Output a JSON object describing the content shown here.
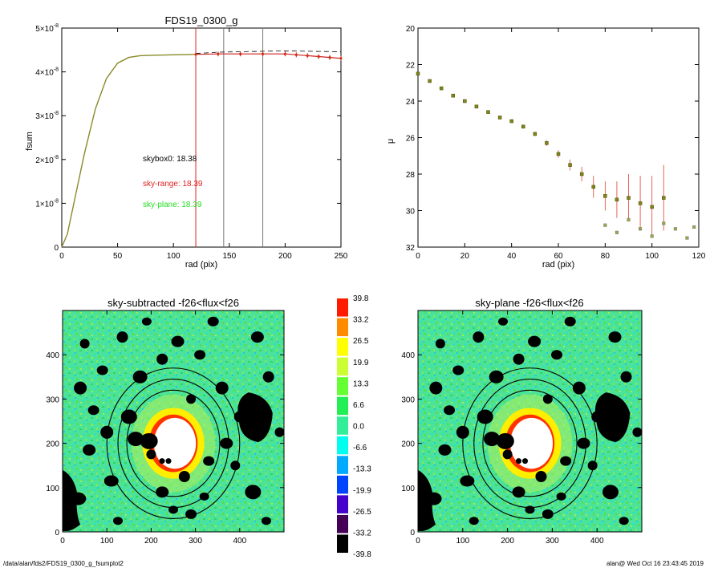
{
  "chart_data": [
    {
      "type": "line",
      "title": "FDS19_0300_g",
      "xlabel": "rad (pix)",
      "ylabel": "fsum",
      "xlim": [
        0,
        250
      ],
      "ylim": [
        0,
        5e-08
      ],
      "x_ticks": [
        "0",
        "50",
        "100",
        "150",
        "200",
        "250"
      ],
      "y_ticks": [
        {
          "mant": "0",
          "exp": ""
        },
        {
          "mant": "1×10",
          "exp": "-8"
        },
        {
          "mant": "2×10",
          "exp": "-8"
        },
        {
          "mant": "3×10",
          "exp": "-8"
        },
        {
          "mant": "4×10",
          "exp": "-8"
        },
        {
          "mant": "5×10",
          "exp": "-8"
        }
      ],
      "annotations": {
        "skybox": "skybox0: 18.38",
        "sky_range": "sky-range: 18.39",
        "sky_plane": "sky-plane: 18.39"
      },
      "vertical_lines": [
        {
          "x": 120,
          "color": "#e02020"
        },
        {
          "x": 145,
          "color": "#777777"
        },
        {
          "x": 180,
          "color": "#777777"
        }
      ],
      "series": [
        {
          "style": "olive-line",
          "x": [
            0,
            5,
            10,
            20,
            30,
            40,
            50,
            60,
            70,
            80,
            100,
            120
          ],
          "y": [
            0,
            3e-09,
            9e-09,
            2.1e-08,
            3.15e-08,
            3.85e-08,
            4.2e-08,
            4.33e-08,
            4.37e-08,
            4.38e-08,
            4.39e-08,
            4.4e-08
          ]
        },
        {
          "style": "red-points",
          "x": [
            120,
            140,
            160,
            180,
            200,
            210,
            220,
            230,
            240,
            250
          ],
          "y": [
            4.4e-08,
            4.41e-08,
            4.41e-08,
            4.41e-08,
            4.41e-08,
            4.39e-08,
            4.37e-08,
            4.35e-08,
            4.33e-08,
            4.31e-08
          ]
        },
        {
          "style": "black-dashed",
          "x": [
            120,
            140,
            160,
            180,
            200,
            220,
            250
          ],
          "y": [
            4.42e-08,
            4.45e-08,
            4.46e-08,
            4.47e-08,
            4.48e-08,
            4.47e-08,
            4.46e-08
          ]
        }
      ]
    },
    {
      "type": "scatter",
      "xlabel": "rad (pix)",
      "ylabel": "μ",
      "xlim": [
        0,
        120
      ],
      "ylim": [
        32,
        20
      ],
      "x_ticks": [
        "0",
        "20",
        "40",
        "60",
        "80",
        "100",
        "120"
      ],
      "y_ticks": [
        "20",
        "22",
        "24",
        "26",
        "28",
        "30",
        "32"
      ],
      "series": [
        {
          "style": "olive-points-with-red-errorbars",
          "x": [
            0,
            5,
            10,
            15,
            20,
            25,
            30,
            35,
            40,
            45,
            50,
            55,
            60,
            65,
            70,
            75,
            80,
            85,
            90,
            95,
            100,
            105
          ],
          "y": [
            22.5,
            22.9,
            23.3,
            23.7,
            24.0,
            24.3,
            24.6,
            24.9,
            25.1,
            25.4,
            25.8,
            26.3,
            26.9,
            27.5,
            28.0,
            28.7,
            29.2,
            29.4,
            29.3,
            29.6,
            29.8,
            29.3
          ],
          "err": [
            0.02,
            0.03,
            0.03,
            0.04,
            0.05,
            0.05,
            0.06,
            0.07,
            0.08,
            0.1,
            0.12,
            0.15,
            0.2,
            0.3,
            0.4,
            0.6,
            0.8,
            1.0,
            1.3,
            1.5,
            1.7,
            1.8
          ]
        },
        {
          "style": "faint-points",
          "x": [
            80,
            85,
            90,
            95,
            100,
            105,
            110,
            115,
            118
          ],
          "y": [
            30.8,
            31.2,
            30.5,
            31.0,
            31.4,
            30.7,
            31.0,
            31.5,
            30.9
          ]
        }
      ]
    },
    {
      "type": "heatmap",
      "title": "sky-subtracted -f26<flux<f26",
      "xlim": [
        0,
        500
      ],
      "ylim": [
        0,
        500
      ],
      "x_ticks": [
        "0",
        "100",
        "200",
        "300",
        "400"
      ],
      "y_ticks": [
        "0",
        "100",
        "200",
        "300",
        "400"
      ]
    },
    {
      "type": "heatmap",
      "title": "sky-plane -f26<flux<f26",
      "xlim": [
        0,
        500
      ],
      "ylim": [
        0,
        500
      ],
      "x_ticks": [
        "0",
        "100",
        "200",
        "300",
        "400"
      ],
      "y_ticks": [
        "0",
        "100",
        "200",
        "300",
        "400"
      ]
    }
  ],
  "colorbar": {
    "labels": [
      "39.8",
      "33.2",
      "26.5",
      "19.9",
      "13.3",
      "6.6",
      "0.0",
      "-6.6",
      "-13.3",
      "-19.9",
      "-26.5",
      "-33.2",
      "-39.8"
    ],
    "colors": [
      "#ff1a00",
      "#ff8c00",
      "#ffff00",
      "#ccff33",
      "#66ff33",
      "#22ee55",
      "#33ee99",
      "#00ffee",
      "#00aaff",
      "#0044ff",
      "#4400cc",
      "#440055",
      "#000000"
    ]
  },
  "footer": {
    "path": "/data/alan/fds2/FDS19_0300_g_fsumplot2",
    "stamp": "alan@  Wed Oct 16 23:43:45 2019"
  }
}
